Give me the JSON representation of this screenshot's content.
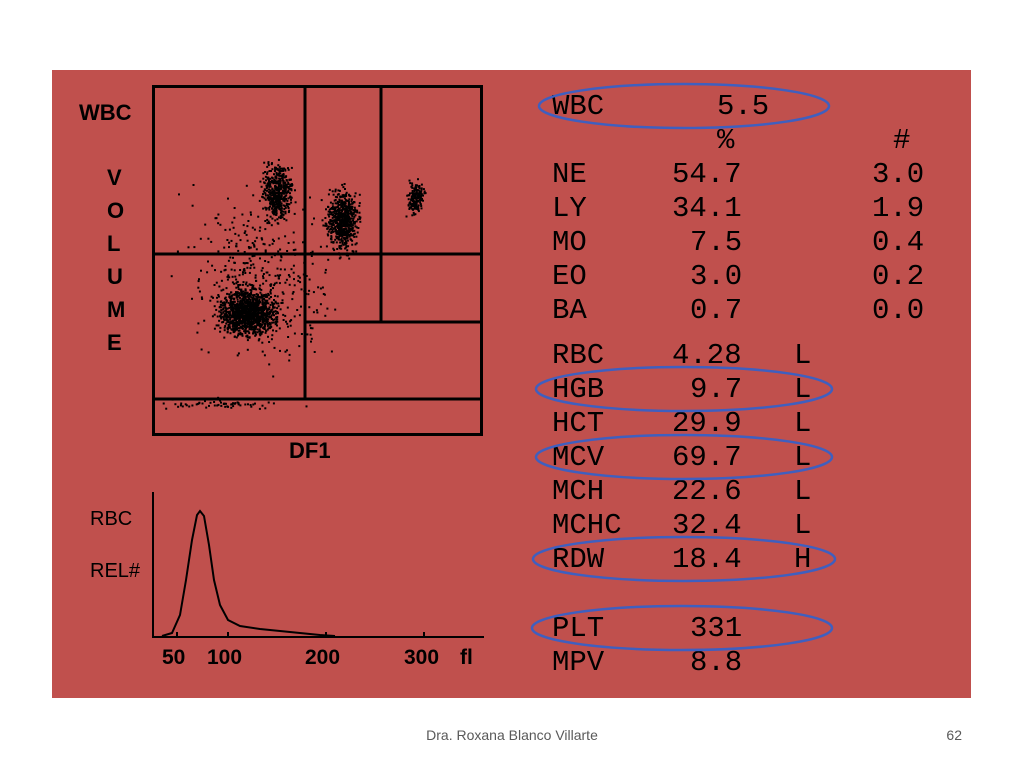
{
  "scatter": {
    "y_title": "WBC",
    "y_axis_letters": [
      "V",
      "O",
      "L",
      "U",
      "M",
      "E"
    ],
    "x_label": "DF1"
  },
  "histogram": {
    "label_line1": "RBC",
    "label_line2": "REL#",
    "ticks": [
      "50",
      "100",
      "200",
      "300",
      "fl"
    ]
  },
  "results": {
    "wbc_row": {
      "name": "WBC",
      "value": "5.5"
    },
    "header": {
      "pct": "%",
      "abs": "#"
    },
    "diff_rows": [
      {
        "name": "NE",
        "pct": "54.7",
        "abs": "3.0"
      },
      {
        "name": "LY",
        "pct": "34.1",
        "abs": "1.9"
      },
      {
        "name": "MO",
        "pct": "7.5",
        "abs": "0.4"
      },
      {
        "name": "EO",
        "pct": "3.0",
        "abs": "0.2"
      },
      {
        "name": "BA",
        "pct": "0.7",
        "abs": "0.0"
      }
    ],
    "red_rows": [
      {
        "name": "RBC",
        "value": "4.28",
        "flag": "L"
      },
      {
        "name": "HGB",
        "value": "9.7",
        "flag": "L"
      },
      {
        "name": "HCT",
        "value": "29.9",
        "flag": "L"
      },
      {
        "name": "MCV",
        "value": "69.7",
        "flag": "L"
      },
      {
        "name": "MCH",
        "value": "22.6",
        "flag": "L"
      },
      {
        "name": "MCHC",
        "value": "32.4",
        "flag": "L"
      },
      {
        "name": "RDW",
        "value": "18.4",
        "flag": "H"
      }
    ],
    "plt_rows": [
      {
        "name": "PLT",
        "value": "331"
      },
      {
        "name": "MPV",
        "value": "8.8"
      }
    ]
  },
  "colors": {
    "panel_bg": "#c0504d",
    "highlight_ellipse": "#3f5fbf"
  },
  "footer": {
    "author": "Dra. Roxana Blanco Villarte",
    "page_number": "62"
  }
}
